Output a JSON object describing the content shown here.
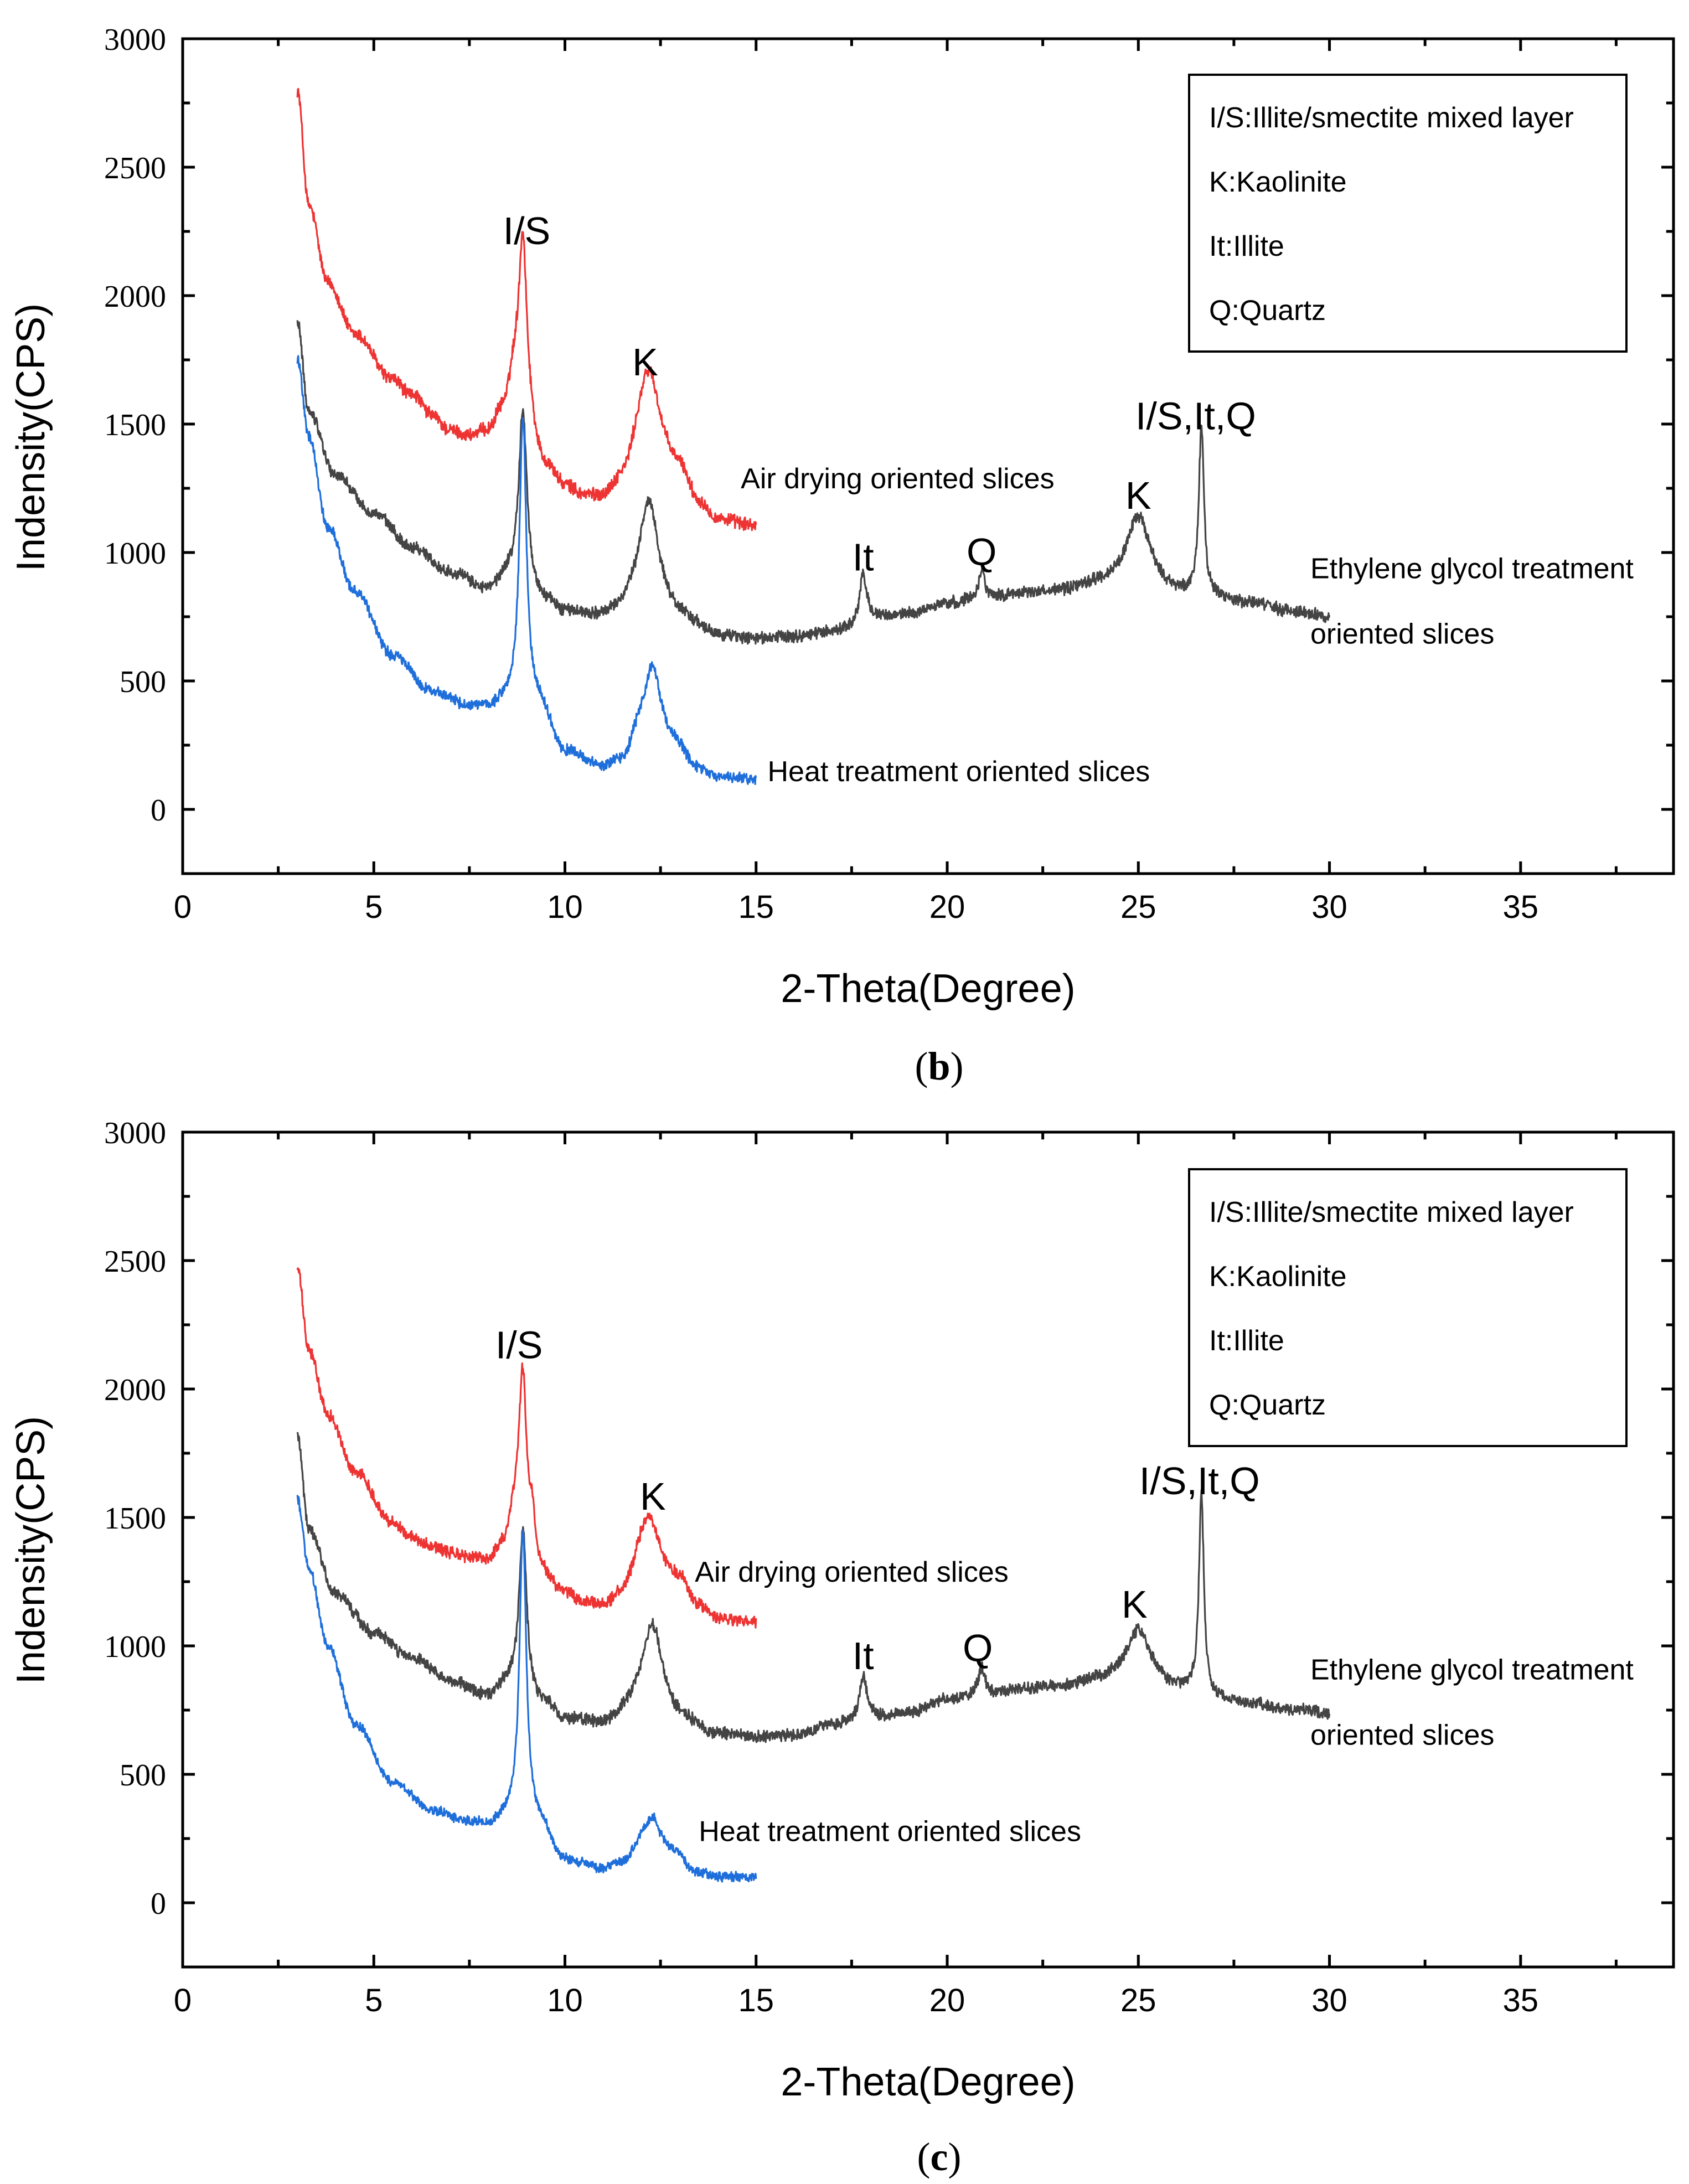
{
  "chart_data": [
    {
      "type": "line",
      "panel": "b",
      "panel_label_open": "(",
      "panel_label_letter": "b",
      "panel_label_close": ")",
      "xlabel": "2-Theta(Degree)",
      "ylabel": "Indensity(CPS)",
      "xlim": [
        0,
        39
      ],
      "ylim": [
        -250,
        3000
      ],
      "xticks": [
        0,
        5,
        10,
        15,
        20,
        25,
        30,
        35
      ],
      "yticks": [
        0,
        500,
        1000,
        1500,
        2000,
        2500,
        3000
      ],
      "legend": {
        "position": "top-right",
        "items": [
          "I/S:Illite/smectite mixed layer",
          "K:Kaolinite",
          "It:Illite",
          "Q:Quartz"
        ]
      },
      "series": [
        {
          "name": "Air drying oriented slices",
          "color": "#ee3333",
          "x_range": [
            3,
            15
          ],
          "label_at": [
            14.6,
            1250
          ],
          "baseline": [
            [
              3,
              2800
            ],
            [
              3.3,
              2350
            ],
            [
              3.8,
              2050
            ],
            [
              4.5,
              1850
            ],
            [
              5.5,
              1670
            ],
            [
              6,
              1600
            ],
            [
              6.5,
              1530
            ],
            [
              7,
              1470
            ],
            [
              7.5,
              1450
            ],
            [
              8,
              1470
            ],
            [
              8.4,
              1560
            ],
            [
              8.7,
              1700
            ],
            [
              9.5,
              1330
            ],
            [
              10,
              1250
            ],
            [
              10.5,
              1210
            ],
            [
              11,
              1200
            ],
            [
              11.5,
              1250
            ],
            [
              12,
              1350
            ],
            [
              13,
              1300
            ],
            [
              13.5,
              1180
            ],
            [
              14,
              1120
            ],
            [
              15,
              1100
            ]
          ],
          "peaks": [
            [
              8.9,
              2250,
              0.12
            ],
            [
              12.2,
              1710,
              0.35
            ],
            [
              6.1,
              1610,
              0.25
            ]
          ],
          "noise": 22
        },
        {
          "name": "Ethylene glycol treatment oriented slices",
          "label_lines": [
            "Ethylene glycol treatment",
            "oriented slices"
          ],
          "color": "#444444",
          "x_range": [
            3,
            30
          ],
          "label_at": [
            29.5,
            900
          ],
          "baseline": [
            [
              3,
              1890
            ],
            [
              3.3,
              1550
            ],
            [
              4,
              1300
            ],
            [
              5,
              1150
            ],
            [
              6,
              1020
            ],
            [
              7,
              920
            ],
            [
              8,
              850
            ],
            [
              8.5,
              900
            ],
            [
              9.5,
              800
            ],
            [
              10,
              760
            ],
            [
              11,
              740
            ],
            [
              12,
              780
            ],
            [
              13,
              730
            ],
            [
              14,
              670
            ],
            [
              15,
              660
            ],
            [
              16,
              670
            ],
            [
              17,
              690
            ],
            [
              17.5,
              700
            ],
            [
              18.2,
              740
            ],
            [
              19,
              760
            ],
            [
              20,
              800
            ],
            [
              21,
              820
            ],
            [
              22,
              840
            ],
            [
              23,
              850
            ],
            [
              24,
              880
            ],
            [
              25,
              900
            ],
            [
              26,
              840
            ],
            [
              27,
              820
            ],
            [
              28,
              800
            ],
            [
              29,
              770
            ],
            [
              30,
              750
            ]
          ],
          "peaks": [
            [
              8.9,
              1550,
              0.13
            ],
            [
              12.2,
              1200,
              0.32
            ],
            [
              17.8,
              910,
              0.12
            ],
            [
              20.9,
              930,
              0.1
            ],
            [
              25.0,
              1140,
              0.35
            ],
            [
              26.65,
              1490,
              0.08
            ]
          ],
          "noise": 20
        },
        {
          "name": "Heat treatment oriented slices",
          "color": "#1f6fdb",
          "x_range": [
            3,
            15
          ],
          "label_at": [
            15.3,
            110
          ],
          "baseline": [
            [
              3,
              1750
            ],
            [
              3.3,
              1450
            ],
            [
              3.8,
              1100
            ],
            [
              4.5,
              850
            ],
            [
              5.5,
              600
            ],
            [
              6.5,
              460
            ],
            [
              7.5,
              400
            ],
            [
              8,
              390
            ],
            [
              8.5,
              420
            ],
            [
              9.3,
              400
            ],
            [
              10,
              220
            ],
            [
              11,
              160
            ],
            [
              11.5,
              180
            ],
            [
              12,
              300
            ],
            [
              12.8,
              250
            ],
            [
              13.5,
              150
            ],
            [
              14,
              120
            ],
            [
              15,
              115
            ]
          ],
          "peaks": [
            [
              8.9,
              1530,
              0.11
            ],
            [
              12.3,
              560,
              0.25
            ]
          ],
          "noise": 18
        }
      ],
      "annotations": [
        {
          "text": "I/S",
          "x": 9.0,
          "y": 2200
        },
        {
          "text": "K",
          "x": 12.1,
          "y": 1690
        },
        {
          "text": "It",
          "x": 17.8,
          "y": 930
        },
        {
          "text": "Q",
          "x": 20.9,
          "y": 950
        },
        {
          "text": "K",
          "x": 25.0,
          "y": 1170
        },
        {
          "text": "I/S,It,Q",
          "x": 26.5,
          "y": 1480
        }
      ]
    },
    {
      "type": "line",
      "panel": "c",
      "panel_label_open": "(",
      "panel_label_letter": "c",
      "panel_label_close": ")",
      "xlabel": "2-Theta(Degree)",
      "ylabel": "Indensity(CPS)",
      "xlim": [
        0,
        39
      ],
      "ylim": [
        -250,
        3000
      ],
      "xticks": [
        0,
        5,
        10,
        15,
        20,
        25,
        30,
        35
      ],
      "yticks": [
        0,
        500,
        1000,
        1500,
        2000,
        2500,
        3000
      ],
      "legend": {
        "position": "top-right",
        "items": [
          "I/S:Illite/smectite mixed layer",
          "K:Kaolinite",
          "It:Illite",
          "Q:Quartz"
        ]
      },
      "series": [
        {
          "name": "Air drying oriented slices",
          "color": "#ee3333",
          "x_range": [
            3,
            15
          ],
          "label_at": [
            13.4,
            1250
          ],
          "baseline": [
            [
              3,
              2470
            ],
            [
              3.3,
              2150
            ],
            [
              3.8,
              1900
            ],
            [
              4.5,
              1680
            ],
            [
              5.5,
              1480
            ],
            [
              6,
              1420
            ],
            [
              6.5,
              1390
            ],
            [
              7,
              1360
            ],
            [
              7.5,
              1340
            ],
            [
              8,
              1330
            ],
            [
              8.4,
              1390
            ],
            [
              8.7,
              1500
            ],
            [
              9.3,
              1280
            ],
            [
              10,
              1200
            ],
            [
              10.5,
              1160
            ],
            [
              11,
              1150
            ],
            [
              11.5,
              1190
            ],
            [
              12,
              1300
            ],
            [
              13,
              1250
            ],
            [
              13.5,
              1150
            ],
            [
              14,
              1100
            ],
            [
              15,
              1090
            ]
          ],
          "peaks": [
            [
              8.9,
              2070,
              0.12
            ],
            [
              9.15,
              1480,
              0.08
            ],
            [
              12.2,
              1510,
              0.3
            ]
          ],
          "noise": 20
        },
        {
          "name": "Ethylene glycol treatment oriented slices",
          "label_lines": [
            "Ethylene glycol treatment",
            "oriented slices"
          ],
          "color": "#444444",
          "x_range": [
            3,
            30
          ],
          "label_at": [
            29.5,
            870
          ],
          "baseline": [
            [
              3,
              1820
            ],
            [
              3.3,
              1450
            ],
            [
              4,
              1200
            ],
            [
              5,
              1050
            ],
            [
              6,
              950
            ],
            [
              7,
              860
            ],
            [
              8,
              800
            ],
            [
              8.5,
              850
            ],
            [
              9.5,
              760
            ],
            [
              10,
              710
            ],
            [
              11,
              690
            ],
            [
              12,
              760
            ],
            [
              13,
              700
            ],
            [
              14,
              650
            ],
            [
              15,
              640
            ],
            [
              16,
              650
            ],
            [
              17,
              690
            ],
            [
              17.5,
              700
            ],
            [
              18.2,
              720
            ],
            [
              19,
              740
            ],
            [
              20,
              790
            ],
            [
              21,
              810
            ],
            [
              22,
              830
            ],
            [
              23,
              840
            ],
            [
              24,
              870
            ],
            [
              25,
              900
            ],
            [
              26,
              830
            ],
            [
              27,
              790
            ],
            [
              28,
              770
            ],
            [
              29,
              750
            ],
            [
              30,
              740
            ]
          ],
          "peaks": [
            [
              8.9,
              1450,
              0.12
            ],
            [
              12.3,
              1080,
              0.32
            ],
            [
              17.8,
              880,
              0.12
            ],
            [
              20.9,
              920,
              0.1
            ],
            [
              25.0,
              1060,
              0.35
            ],
            [
              26.65,
              1580,
              0.08
            ]
          ],
          "noise": 20
        },
        {
          "name": "Heat treatment oriented slices",
          "color": "#1f6fdb",
          "x_range": [
            3,
            15
          ],
          "label_at": [
            13.5,
            240
          ],
          "baseline": [
            [
              3,
              1570
            ],
            [
              3.3,
              1300
            ],
            [
              3.8,
              1000
            ],
            [
              4.5,
              700
            ],
            [
              5.5,
              470
            ],
            [
              6.5,
              360
            ],
            [
              7.5,
              310
            ],
            [
              8,
              300
            ],
            [
              8.5,
              330
            ],
            [
              9.3,
              300
            ],
            [
              10,
              160
            ],
            [
              11,
              130
            ],
            [
              11.5,
              150
            ],
            [
              12,
              220
            ],
            [
              12.8,
              190
            ],
            [
              13.5,
              110
            ],
            [
              14,
              100
            ],
            [
              15,
              100
            ]
          ],
          "peaks": [
            [
              8.9,
              1450,
              0.11
            ],
            [
              12.3,
              330,
              0.25
            ]
          ],
          "noise": 16
        }
      ],
      "annotations": [
        {
          "text": "I/S",
          "x": 8.8,
          "y": 2120
        },
        {
          "text": "K",
          "x": 12.3,
          "y": 1530
        },
        {
          "text": "It",
          "x": 17.8,
          "y": 910
        },
        {
          "text": "Q",
          "x": 20.8,
          "y": 940
        },
        {
          "text": "K",
          "x": 24.9,
          "y": 1110
        },
        {
          "text": "I/S,It,Q",
          "x": 26.6,
          "y": 1590
        }
      ]
    }
  ]
}
